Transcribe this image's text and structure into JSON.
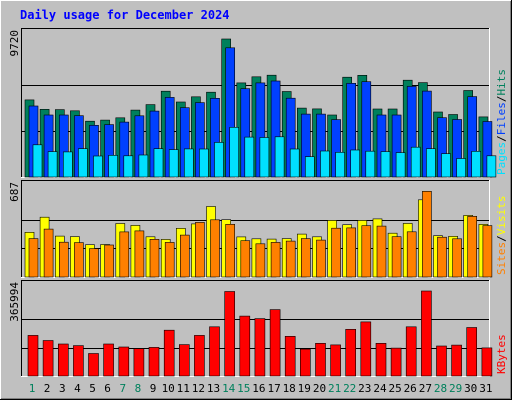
{
  "chart_data": [
    {
      "type": "bar",
      "panel": "pages-files-hits",
      "title": "Daily usage for December 2024",
      "max_label": "9720",
      "legend": [
        "Pages",
        "Files",
        "Hits"
      ],
      "ylim": [
        0,
        9720
      ],
      "categories": [
        "1",
        "2",
        "3",
        "4",
        "5",
        "6",
        "7",
        "8",
        "9",
        "10",
        "11",
        "12",
        "13",
        "14",
        "15",
        "16",
        "17",
        "18",
        "19",
        "20",
        "21",
        "22",
        "23",
        "24",
        "25",
        "26",
        "27",
        "28",
        "29",
        "30",
        "31"
      ],
      "series": [
        {
          "name": "Hits",
          "values": [
            5430,
            4770,
            4750,
            4660,
            3930,
            4010,
            4170,
            4710,
            5100,
            6040,
            5280,
            5650,
            5970,
            9720,
            6630,
            7060,
            7170,
            6020,
            4850,
            4800,
            4370,
            7030,
            7160,
            4790,
            4790,
            6820,
            6650,
            4580,
            4400,
            6090,
            4230
          ]
        },
        {
          "name": "Files",
          "values": [
            5000,
            4370,
            4370,
            4320,
            3640,
            3690,
            3870,
            4310,
            4640,
            5610,
            4880,
            5240,
            5540,
            9100,
            6220,
            6630,
            6760,
            5550,
            4430,
            4430,
            4040,
            6600,
            6710,
            4370,
            4370,
            6380,
            6050,
            4180,
            4050,
            5660,
            3910
          ]
        },
        {
          "name": "Pages",
          "values": [
            2270,
            1790,
            1770,
            1990,
            1480,
            1530,
            1490,
            1550,
            1990,
            1930,
            1980,
            1970,
            2440,
            3500,
            2810,
            2780,
            2830,
            1970,
            1430,
            1830,
            1740,
            1900,
            1820,
            1790,
            1720,
            2100,
            1990,
            1640,
            1300,
            1810,
            1490
          ]
        }
      ]
    },
    {
      "type": "bar",
      "panel": "sites-visits",
      "max_label": "687",
      "legend": [
        "Sites",
        "Visits"
      ],
      "ylim": [
        0,
        687
      ],
      "categories": [
        "1",
        "2",
        "3",
        "4",
        "5",
        "6",
        "7",
        "8",
        "9",
        "10",
        "11",
        "12",
        "13",
        "14",
        "15",
        "16",
        "17",
        "18",
        "19",
        "20",
        "21",
        "22",
        "23",
        "24",
        "25",
        "26",
        "27",
        "28",
        "29",
        "30",
        "31"
      ],
      "series": [
        {
          "name": "Visits",
          "values": [
            357,
            478,
            327,
            323,
            258,
            260,
            427,
            412,
            321,
            300,
            389,
            424,
            563,
            458,
            320,
            305,
            303,
            307,
            343,
            321,
            452,
            418,
            452,
            464,
            350,
            428,
            617,
            330,
            325,
            492,
            421
          ]
        },
        {
          "name": "Sites",
          "values": [
            307,
            383,
            278,
            275,
            227,
            256,
            360,
            368,
            301,
            276,
            335,
            436,
            457,
            421,
            290,
            265,
            276,
            287,
            307,
            295,
            390,
            392,
            410,
            407,
            322,
            361,
            685,
            318,
            305,
            485,
            411
          ]
        }
      ]
    },
    {
      "type": "bar",
      "panel": "kbytes",
      "max_label": "365994",
      "legend": [
        "KBytes"
      ],
      "ylim": [
        0,
        365994
      ],
      "categories": [
        "1",
        "2",
        "3",
        "4",
        "5",
        "6",
        "7",
        "8",
        "9",
        "10",
        "11",
        "12",
        "13",
        "14",
        "15",
        "16",
        "17",
        "18",
        "19",
        "20",
        "21",
        "22",
        "23",
        "24",
        "25",
        "26",
        "27",
        "28",
        "29",
        "30",
        "31"
      ],
      "series": [
        {
          "name": "KBytes",
          "values": [
            175000,
            153000,
            138000,
            131000,
            97000,
            138000,
            125000,
            118000,
            123000,
            197000,
            135000,
            175000,
            212000,
            364000,
            258000,
            247000,
            286000,
            171000,
            116000,
            141000,
            134000,
            201000,
            233000,
            141000,
            120000,
            212000,
            366000,
            129000,
            133000,
            209000,
            121000
          ]
        }
      ]
    }
  ],
  "x_axis": {
    "days": [
      "1",
      "2",
      "3",
      "4",
      "5",
      "6",
      "7",
      "8",
      "9",
      "10",
      "11",
      "12",
      "13",
      "14",
      "15",
      "16",
      "17",
      "18",
      "19",
      "20",
      "21",
      "22",
      "23",
      "24",
      "25",
      "26",
      "27",
      "28",
      "29",
      "30",
      "31"
    ],
    "weekend_days": [
      "1",
      "7",
      "8",
      "14",
      "15",
      "21",
      "22",
      "28",
      "29"
    ]
  },
  "colors": {
    "background": "#C0C0C0",
    "panel": "#C0C0C0",
    "title": "#0000FF",
    "hits": "#00805C",
    "files": "#0040FF",
    "pages": "#00E0FF",
    "visits": "#FFFF00",
    "sites": "#FF8000",
    "kbytes": "#FF0000",
    "weekday_label": "#000000",
    "weekend_label": "#00805C"
  }
}
